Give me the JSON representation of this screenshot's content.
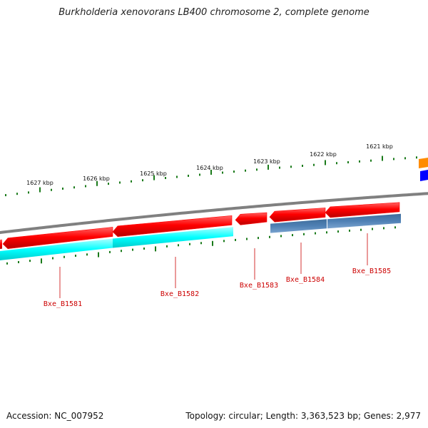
{
  "title": "Burkholderia xenovorans LB400 chromosome 2, complete genome",
  "scale_labels": [
    "1627 kbp",
    "1626 kbp",
    "1625 kbp",
    "1624 kbp",
    "1623 kbp",
    "1622 kbp",
    "1621 kbp"
  ],
  "genes": [
    {
      "label": "Bxe_B1581",
      "strand": "reverse",
      "color": "#ff0000",
      "cds_color": "#00ffff"
    },
    {
      "label": "Bxe_B1582",
      "strand": "reverse",
      "color": "#ff0000",
      "cds_color": "#00ffff"
    },
    {
      "label": "Bxe_B1583",
      "strand": "reverse",
      "color": "#ff0000",
      "cds_color": null
    },
    {
      "label": "Bxe_B1584",
      "strand": "reverse",
      "color": "#ff0000",
      "cds_color": "#4f81b5"
    },
    {
      "label": "Bxe_B1585",
      "strand": "reverse",
      "color": "#ff0000",
      "cds_color": "#4f81b5"
    }
  ],
  "colors": {
    "backbone": "#808080",
    "gene": "#ff0000",
    "cds_cyan": "#00ffff",
    "cds_steel": "#4f81b5",
    "tick": "#1a7a1a",
    "label": "#cc0000",
    "orange_feature": "#ff8c00",
    "blue_feature": "#0000ff"
  },
  "footer": {
    "accession": "Accession: NC_007952",
    "summary": "Topology: circular; Length: 3,363,523 bp; Genes: 2,977"
  }
}
